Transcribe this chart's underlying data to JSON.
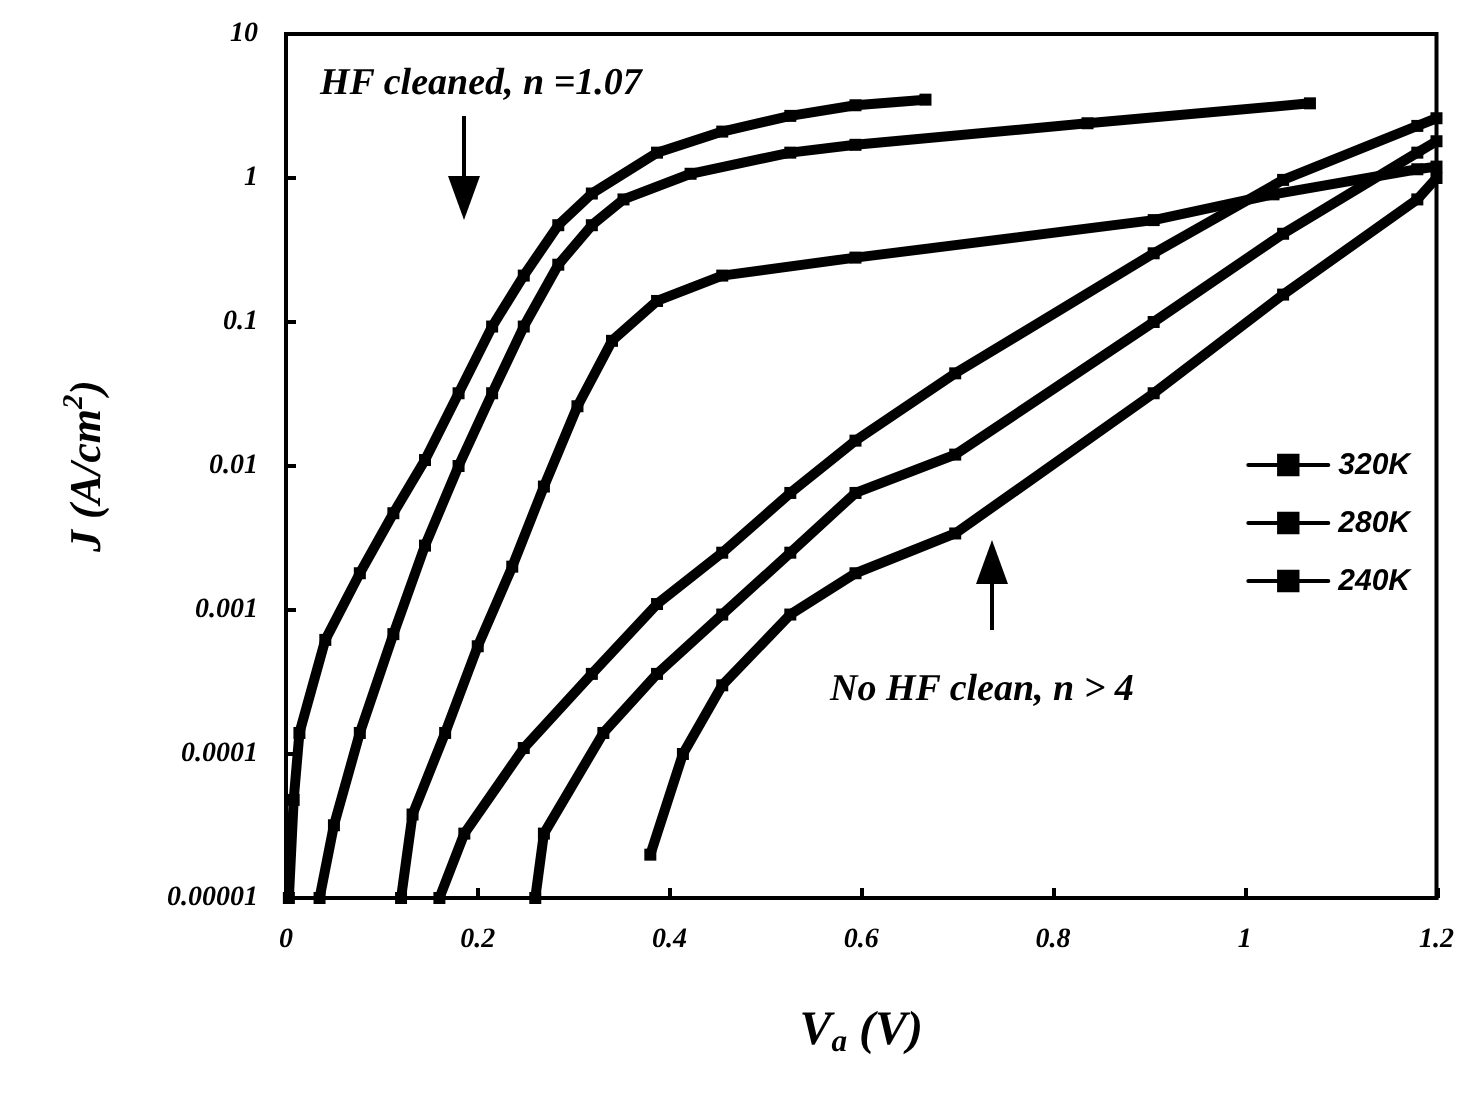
{
  "chart_data": {
    "type": "line",
    "xlabel": "V$_{a}$ (V)",
    "ylabel": "J (A/cm$^{2}$)",
    "log": "y",
    "xlim": [
      0,
      1.2
    ],
    "xticks": [
      0,
      0.2,
      0.4,
      0.6,
      0.8,
      1,
      1.2
    ],
    "ylim": [
      1e-05,
      10
    ],
    "yticks": [
      {
        "value": 1e-05,
        "label": "0.00001"
      },
      0.0001,
      0.001,
      0.01,
      0.1,
      1,
      10
    ],
    "grid": false,
    "legend": "right",
    "marker": "square",
    "line_style": "solid",
    "annotations": [
      "HF cleaned, n =1.07",
      "No HF clean, n > 4"
    ],
    "series": [
      {
        "name": "320K",
        "color": "#000000",
        "x": [
          0.003,
          0.008,
          0.014,
          0.041,
          0.077,
          0.112,
          0.145,
          0.18,
          0.215,
          0.248,
          0.284,
          0.319,
          0.387,
          0.455,
          0.526,
          0.594,
          0.667
        ],
        "values": [
          1e-05,
          4.8e-05,
          0.00014,
          0.00062,
          0.0018,
          0.0047,
          0.011,
          0.032,
          0.093,
          0.21,
          0.47,
          0.78,
          1.5,
          2.1,
          2.7,
          3.2,
          3.5
        ]
      },
      {
        "name": "280K",
        "color": "#000000",
        "x": [
          0.035,
          0.05,
          0.077,
          0.112,
          0.145,
          0.18,
          0.215,
          0.248,
          0.284,
          0.319,
          0.352,
          0.422,
          0.526,
          0.594,
          0.836,
          1.068
        ],
        "values": [
          1e-05,
          3.2e-05,
          0.00014,
          0.00068,
          0.0028,
          0.01,
          0.032,
          0.093,
          0.25,
          0.47,
          0.71,
          1.07,
          1.5,
          1.7,
          2.4,
          3.3
        ]
      },
      {
        "name": "240K",
        "color": "#000000",
        "x": [
          0.12,
          0.132,
          0.166,
          0.2,
          0.236,
          0.269,
          0.304,
          0.34,
          0.387,
          0.455,
          0.594,
          0.905,
          1.03,
          1.18,
          1.2
        ],
        "values": [
          1e-05,
          3.8e-05,
          0.00014,
          0.00056,
          0.002,
          0.0072,
          0.026,
          0.074,
          0.14,
          0.21,
          0.28,
          0.51,
          0.77,
          1.15,
          1.2
        ]
      },
      {
        "color": "#000000",
        "x": [
          0.16,
          0.186,
          0.248,
          0.319,
          0.387,
          0.455,
          0.526,
          0.594,
          0.698,
          0.905,
          1.04,
          1.18,
          1.2
        ],
        "values": [
          1e-05,
          2.8e-05,
          0.00011,
          0.00036,
          0.0011,
          0.0025,
          0.0065,
          0.015,
          0.044,
          0.3,
          0.97,
          2.3,
          2.6
        ]
      },
      {
        "color": "#000000",
        "x": [
          0.26,
          0.269,
          0.331,
          0.387,
          0.455,
          0.526,
          0.594,
          0.698,
          0.905,
          1.04,
          1.18,
          1.2
        ],
        "values": [
          1e-05,
          2.8e-05,
          0.00014,
          0.00036,
          0.00093,
          0.0025,
          0.0065,
          0.012,
          0.1,
          0.41,
          1.5,
          1.8
        ]
      },
      {
        "color": "#000000",
        "x": [
          0.38,
          0.414,
          0.455,
          0.526,
          0.594,
          0.698,
          0.905,
          1.04,
          1.18,
          1.2
        ],
        "values": [
          2e-05,
          0.0001,
          0.0003,
          0.00093,
          0.0018,
          0.0034,
          0.032,
          0.155,
          0.71,
          1.0
        ]
      }
    ]
  }
}
